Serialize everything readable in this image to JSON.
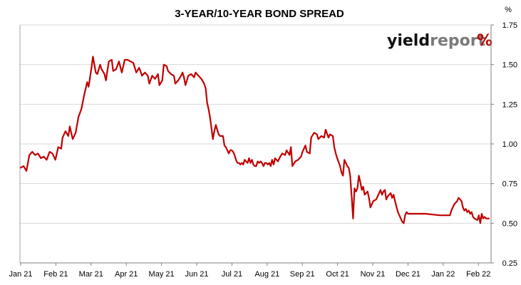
{
  "chart_data": {
    "type": "line",
    "title": "3-YEAR/10-YEAR BOND SPREAD",
    "unit_label": "%",
    "logo": {
      "part1": "yield",
      "part2": "report",
      "part3": "%"
    },
    "xlabel": "",
    "ylabel": "",
    "x_ticks": [
      "Jan 21",
      "Feb 21",
      "Mar 21",
      "Apr 21",
      "May 21",
      "Jun 21",
      "Jul 21",
      "Aug 21",
      "Sep 21",
      "Oct 21",
      "Nov 21",
      "Dec 21",
      "Jan 22",
      "Feb 22"
    ],
    "y_ticks": [
      "0.25",
      "0.50",
      "0.75",
      "1.00",
      "1.25",
      "1.50",
      "1.75"
    ],
    "ylim": [
      0.25,
      1.75
    ],
    "y_axis_position": "right",
    "grid": true,
    "colors": {
      "line": "#c00000",
      "grid": "#d9d9d9",
      "axis": "#808080",
      "logo_accent": "#c00000",
      "logo_alt": "#4caf50"
    },
    "series": [
      {
        "values": [
          [
            0,
            0.85
          ],
          [
            2,
            0.86
          ],
          [
            4,
            0.83
          ],
          [
            6,
            0.93
          ],
          [
            8,
            0.95
          ],
          [
            10,
            0.93
          ],
          [
            12,
            0.94
          ],
          [
            14,
            0.91
          ],
          [
            16,
            0.92
          ],
          [
            18,
            0.9
          ],
          [
            20,
            0.95
          ],
          [
            22,
            0.94
          ],
          [
            24,
            0.9
          ],
          [
            26,
            0.98
          ],
          [
            28,
            0.97
          ],
          [
            29,
            1.04
          ],
          [
            31,
            1.08
          ],
          [
            33,
            1.05
          ],
          [
            34,
            1.11
          ],
          [
            36,
            1.03
          ],
          [
            38,
            1.07
          ],
          [
            40,
            1.17
          ],
          [
            42,
            1.22
          ],
          [
            44,
            1.31
          ],
          [
            46,
            1.39
          ],
          [
            47,
            1.36
          ],
          [
            49,
            1.48
          ],
          [
            50,
            1.55
          ],
          [
            52,
            1.45
          ],
          [
            53,
            1.44
          ],
          [
            55,
            1.5
          ],
          [
            56,
            1.47
          ],
          [
            58,
            1.44
          ],
          [
            59,
            1.4
          ],
          [
            61,
            1.52
          ],
          [
            63,
            1.53
          ],
          [
            64,
            1.46
          ],
          [
            66,
            1.47
          ],
          [
            68,
            1.52
          ],
          [
            70,
            1.45
          ],
          [
            72,
            1.53
          ],
          [
            74,
            1.53
          ],
          [
            76,
            1.52
          ],
          [
            78,
            1.51
          ],
          [
            80,
            1.45
          ],
          [
            82,
            1.48
          ],
          [
            84,
            1.43
          ],
          [
            86,
            1.45
          ],
          [
            88,
            1.43
          ],
          [
            89,
            1.38
          ],
          [
            91,
            1.43
          ],
          [
            93,
            1.41
          ],
          [
            95,
            1.44
          ],
          [
            96,
            1.37
          ],
          [
            98,
            1.4
          ],
          [
            99,
            1.5
          ],
          [
            101,
            1.49
          ],
          [
            102,
            1.46
          ],
          [
            104,
            1.44
          ],
          [
            106,
            1.43
          ],
          [
            107,
            1.38
          ],
          [
            109,
            1.4
          ],
          [
            111,
            1.43
          ],
          [
            112,
            1.45
          ],
          [
            113,
            1.42
          ],
          [
            114,
            1.37
          ],
          [
            116,
            1.43
          ],
          [
            118,
            1.44
          ],
          [
            120,
            1.42
          ],
          [
            121,
            1.45
          ],
          [
            123,
            1.43
          ],
          [
            125,
            1.41
          ],
          [
            127,
            1.38
          ],
          [
            128,
            1.35
          ],
          [
            129,
            1.26
          ],
          [
            130,
            1.22
          ],
          [
            131,
            1.17
          ],
          [
            132,
            1.1
          ],
          [
            133,
            1.03
          ],
          [
            134,
            1.08
          ],
          [
            135,
            1.12
          ],
          [
            136,
            1.09
          ],
          [
            137,
            1.06
          ],
          [
            138,
            1.05
          ],
          [
            140,
            1.05
          ],
          [
            141,
            0.99
          ],
          [
            142,
            0.98
          ],
          [
            143,
            0.96
          ],
          [
            144,
            0.94
          ],
          [
            145,
            0.96
          ],
          [
            146,
            0.96
          ],
          [
            147,
            0.95
          ],
          [
            148,
            0.93
          ],
          [
            149,
            0.9
          ],
          [
            150,
            0.88
          ],
          [
            151,
            0.88
          ],
          [
            152,
            0.87
          ],
          [
            153,
            0.88
          ],
          [
            154,
            0.87
          ],
          [
            155,
            0.9
          ],
          [
            157,
            0.88
          ],
          [
            158,
            0.91
          ],
          [
            159,
            0.88
          ],
          [
            160,
            0.9
          ],
          [
            161,
            0.87
          ],
          [
            162,
            0.86
          ],
          [
            163,
            0.86
          ],
          [
            164,
            0.89
          ],
          [
            165,
            0.88
          ],
          [
            166,
            0.89
          ],
          [
            167,
            0.88
          ],
          [
            168,
            0.86
          ],
          [
            169,
            0.88
          ],
          [
            170,
            0.88
          ],
          [
            171,
            0.87
          ],
          [
            172,
            0.88
          ],
          [
            173,
            0.86
          ],
          [
            174,
            0.9
          ],
          [
            175,
            0.87
          ],
          [
            176,
            0.91
          ],
          [
            178,
            0.89
          ],
          [
            179,
            0.91
          ],
          [
            181,
            0.94
          ],
          [
            183,
            0.93
          ],
          [
            184,
            0.96
          ],
          [
            186,
            0.93
          ],
          [
            187,
            0.98
          ],
          [
            188,
            0.86
          ],
          [
            190,
            0.89
          ],
          [
            192,
            0.9
          ],
          [
            194,
            0.92
          ],
          [
            195,
            0.95
          ],
          [
            197,
            0.99
          ],
          [
            198,
            0.95
          ],
          [
            200,
            0.94
          ],
          [
            201,
            1.04
          ],
          [
            203,
            1.07
          ],
          [
            205,
            1.06
          ],
          [
            206,
            1.03
          ],
          [
            208,
            1.05
          ],
          [
            210,
            1.04
          ],
          [
            211,
            1.09
          ],
          [
            213,
            1.04
          ],
          [
            214,
            1.06
          ],
          [
            216,
            1.05
          ],
          [
            217,
            0.98
          ],
          [
            218,
            0.94
          ],
          [
            219,
            0.91
          ],
          [
            221,
            0.86
          ],
          [
            222,
            0.82
          ],
          [
            223,
            0.8
          ],
          [
            224,
            0.9
          ],
          [
            225,
            0.88
          ],
          [
            226,
            0.86
          ],
          [
            227,
            0.85
          ],
          [
            228,
            0.8
          ],
          [
            229,
            0.67
          ],
          [
            230,
            0.53
          ],
          [
            231,
            0.72
          ],
          [
            232,
            0.7
          ],
          [
            233,
            0.72
          ],
          [
            234,
            0.8
          ],
          [
            235,
            0.76
          ],
          [
            236,
            0.71
          ],
          [
            237,
            0.73
          ],
          [
            238,
            0.68
          ],
          [
            240,
            0.7
          ],
          [
            241,
            0.66
          ],
          [
            242,
            0.6
          ],
          [
            243,
            0.62
          ],
          [
            244,
            0.64
          ],
          [
            246,
            0.65
          ],
          [
            247,
            0.67
          ],
          [
            249,
            0.71
          ],
          [
            250,
            0.68
          ],
          [
            251,
            0.7
          ],
          [
            252,
            0.71
          ],
          [
            253,
            0.65
          ],
          [
            254,
            0.67
          ],
          [
            256,
            0.69
          ],
          [
            257,
            0.66
          ],
          [
            258,
            0.68
          ],
          [
            259,
            0.64
          ],
          [
            261,
            0.57
          ],
          [
            262,
            0.55
          ],
          [
            263,
            0.53
          ],
          [
            264,
            0.51
          ],
          [
            265,
            0.5
          ],
          [
            266,
            0.55
          ],
          [
            267,
            0.57
          ],
          [
            268,
            0.56
          ],
          [
            270,
            0.56
          ],
          [
            280,
            0.56
          ],
          [
            290,
            0.55
          ],
          [
            297,
            0.55
          ],
          [
            298,
            0.58
          ],
          [
            299,
            0.6
          ],
          [
            300,
            0.62
          ],
          [
            302,
            0.64
          ],
          [
            303,
            0.66
          ],
          [
            304,
            0.65
          ],
          [
            305,
            0.64
          ],
          [
            306,
            0.6
          ],
          [
            307,
            0.58
          ],
          [
            308,
            0.59
          ],
          [
            309,
            0.57
          ],
          [
            310,
            0.58
          ],
          [
            311,
            0.56
          ],
          [
            312,
            0.57
          ],
          [
            313,
            0.54
          ],
          [
            314,
            0.53
          ],
          [
            316,
            0.52
          ],
          [
            317,
            0.55
          ],
          [
            318,
            0.5
          ],
          [
            319,
            0.56
          ],
          [
            320,
            0.53
          ],
          [
            321,
            0.54
          ],
          [
            322,
            0.53
          ],
          [
            324,
            0.53
          ]
        ]
      }
    ]
  }
}
